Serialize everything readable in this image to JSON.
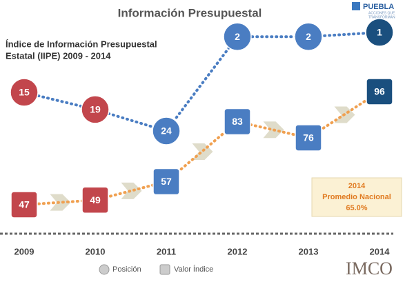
{
  "chart_data": {
    "type": "infographic-line",
    "title": "Información Presupuestal",
    "subtitle": [
      "Índice de Información Presupuestal",
      "Estatal (IIPE) 2009 - 2014"
    ],
    "categories": [
      "2009",
      "2010",
      "2011",
      "2012",
      "2013",
      "2014"
    ],
    "point_colors": [
      "#c2464c",
      "#c2464c",
      "#4a7dc2",
      "#4a7dc2",
      "#4a7dc2",
      "#1a4f7e"
    ],
    "series": [
      {
        "name": "Posición",
        "line_color": "#4a7dc2",
        "values": [
          15,
          19,
          24,
          2,
          2,
          1
        ]
      },
      {
        "name": "Valor Índice",
        "line_color": "#f0a050",
        "values": [
          47,
          49,
          57,
          83,
          76,
          96
        ]
      }
    ],
    "annotation": [
      "2014",
      "Promedio Nacional",
      "65.0%"
    ],
    "logos": [
      "PUEBLA",
      "ACCIONES QUE",
      "TRANSFORMAN",
      "IMCO"
    ]
  }
}
